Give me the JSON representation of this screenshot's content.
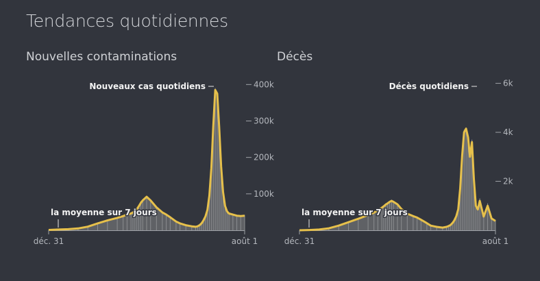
{
  "title": "Tendances quotidiennes",
  "colors": {
    "background": "#32353d",
    "bars": "#8b8d90",
    "area": "#5f6165",
    "line": "#e6c04b",
    "axis": "#9fa2a8"
  },
  "chart_data": [
    {
      "type": "area",
      "title": "Nouvelles contaminations",
      "series_label": "Nouveaux cas quotidiens",
      "average_label": "la moyenne sur 7 jours",
      "x_ticks": [
        "déc. 31",
        "août 1"
      ],
      "x_range": [
        "déc. 31",
        "août 1"
      ],
      "y_ticks": [
        100000,
        200000,
        300000,
        400000
      ],
      "y_tick_labels": [
        "100k",
        "200k",
        "300k",
        "400k"
      ],
      "ylim": [
        0,
        410000
      ],
      "grid": false,
      "x_pct": [
        0,
        5,
        10,
        15,
        20,
        25,
        30,
        35,
        38,
        40,
        42,
        43,
        44,
        45,
        46,
        47,
        48,
        50,
        52,
        55,
        58,
        60,
        62,
        65,
        67,
        70,
        73,
        75,
        76,
        77,
        78,
        79,
        80,
        81,
        82,
        83,
        84,
        85,
        86,
        87,
        88,
        89,
        90,
        91,
        92,
        94,
        96,
        98,
        100
      ],
      "values": [
        1000,
        2000,
        3000,
        5000,
        10000,
        20000,
        28000,
        35000,
        40000,
        45000,
        48000,
        50000,
        55000,
        60000,
        70000,
        80000,
        85000,
        95000,
        85000,
        65000,
        50000,
        45000,
        38000,
        25000,
        20000,
        15000,
        12000,
        10000,
        12000,
        15000,
        20000,
        28000,
        40000,
        60000,
        100000,
        180000,
        300000,
        390000,
        380000,
        290000,
        180000,
        110000,
        70000,
        55000,
        48000,
        45000,
        42000,
        41000,
        42000
      ],
      "average": [
        1000,
        2000,
        3000,
        5000,
        10000,
        19000,
        27000,
        34000,
        39000,
        43000,
        46000,
        49000,
        53000,
        58000,
        66000,
        75000,
        82000,
        92000,
        82000,
        63000,
        49000,
        43000,
        36000,
        24000,
        19000,
        14000,
        11000,
        9500,
        11000,
        14000,
        19000,
        27000,
        38000,
        56000,
        95000,
        170000,
        285000,
        385000,
        375000,
        285000,
        175000,
        105000,
        67000,
        52000,
        46000,
        43000,
        40000,
        39000,
        40000
      ]
    },
    {
      "type": "area",
      "title": "Décès",
      "series_label": "Décès quotidiens",
      "average_label": "la moyenne sur 7 jours",
      "x_ticks": [
        "déc. 31",
        "août 1"
      ],
      "x_range": [
        "déc. 31",
        "août 1"
      ],
      "y_ticks": [
        2000,
        4000,
        6000
      ],
      "y_tick_labels": [
        "2k",
        "4k",
        "6k"
      ],
      "ylim": [
        0,
        6100
      ],
      "grid": false,
      "x_pct": [
        0,
        5,
        10,
        15,
        20,
        25,
        30,
        35,
        38,
        40,
        42,
        43,
        44,
        45,
        46,
        47,
        48,
        50,
        52,
        55,
        58,
        60,
        62,
        65,
        67,
        70,
        73,
        75,
        76,
        77,
        78,
        79,
        80,
        81,
        82,
        83,
        84,
        85,
        86,
        87,
        88,
        89,
        90,
        91,
        92,
        94,
        96,
        98,
        100
      ],
      "values": [
        0,
        10,
        30,
        80,
        200,
        350,
        500,
        650,
        750,
        850,
        950,
        1000,
        1100,
        1150,
        1200,
        1250,
        1200,
        1100,
        900,
        700,
        600,
        550,
        450,
        300,
        200,
        150,
        120,
        150,
        180,
        220,
        300,
        420,
        600,
        900,
        1800,
        3200,
        4100,
        4200,
        3900,
        3200,
        3700,
        2200,
        1100,
        900,
        1300,
        600,
        1100,
        500,
        400
      ],
      "average": [
        0,
        10,
        30,
        80,
        190,
        330,
        470,
        620,
        720,
        820,
        920,
        980,
        1050,
        1100,
        1160,
        1200,
        1160,
        1060,
        870,
        680,
        580,
        520,
        430,
        290,
        190,
        140,
        110,
        140,
        170,
        210,
        290,
        400,
        570,
        860,
        1700,
        3050,
        4000,
        4150,
        3800,
        3000,
        3600,
        2100,
        1000,
        850,
        1200,
        560,
        1000,
        480,
        380
      ]
    }
  ]
}
